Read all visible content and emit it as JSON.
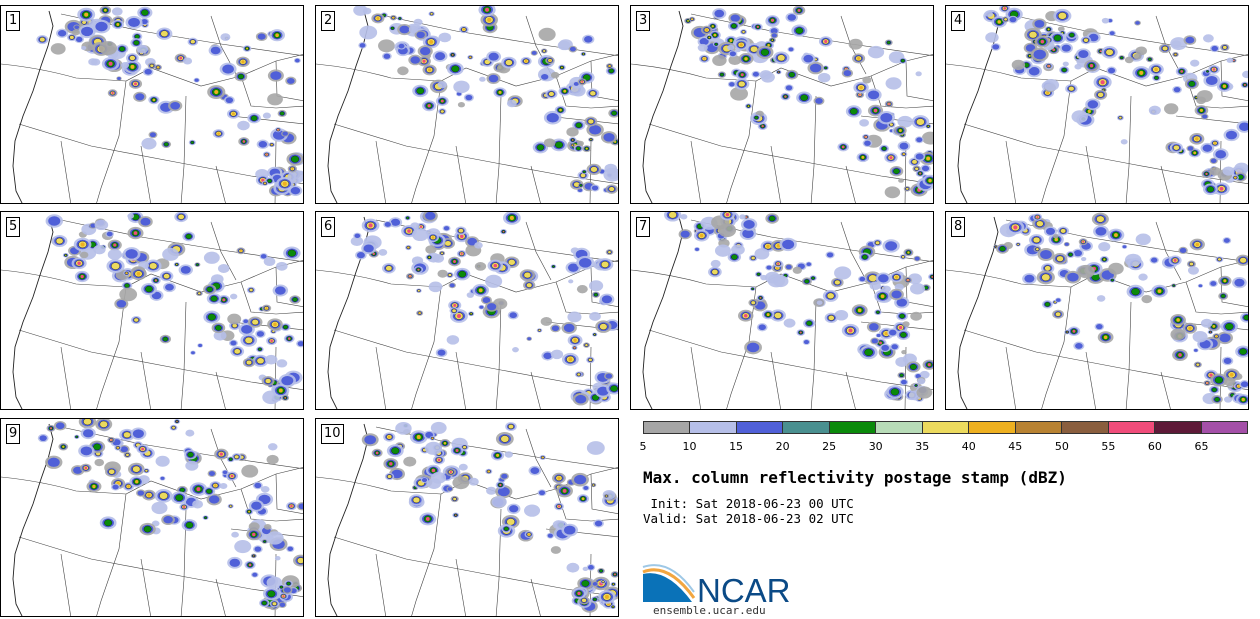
{
  "panels": [
    "1",
    "2",
    "3",
    "4",
    "5",
    "6",
    "7",
    "8",
    "9",
    "10"
  ],
  "colorbar": {
    "ticks": [
      "5",
      "10",
      "15",
      "20",
      "25",
      "30",
      "35",
      "40",
      "45",
      "50",
      "55",
      "60",
      "65"
    ],
    "colors": [
      "#a6a6a6",
      "#b6bfe8",
      "#5060d8",
      "#4a9090",
      "#0a8a0a",
      "#b8dcb8",
      "#ecda5e",
      "#eeb020",
      "#b88232",
      "#8a5e3e",
      "#f04c7a",
      "#5e1a38",
      "#a450a8"
    ]
  },
  "title": "Max. column reflectivity postage stamp (dBZ)",
  "init_line": " Init: Sat 2018-06-23 00 UTC",
  "valid_line": "Valid: Sat 2018-06-23 02 UTC",
  "logo": {
    "text": "NCAR",
    "url": "ensemble.ucar.edu"
  }
}
